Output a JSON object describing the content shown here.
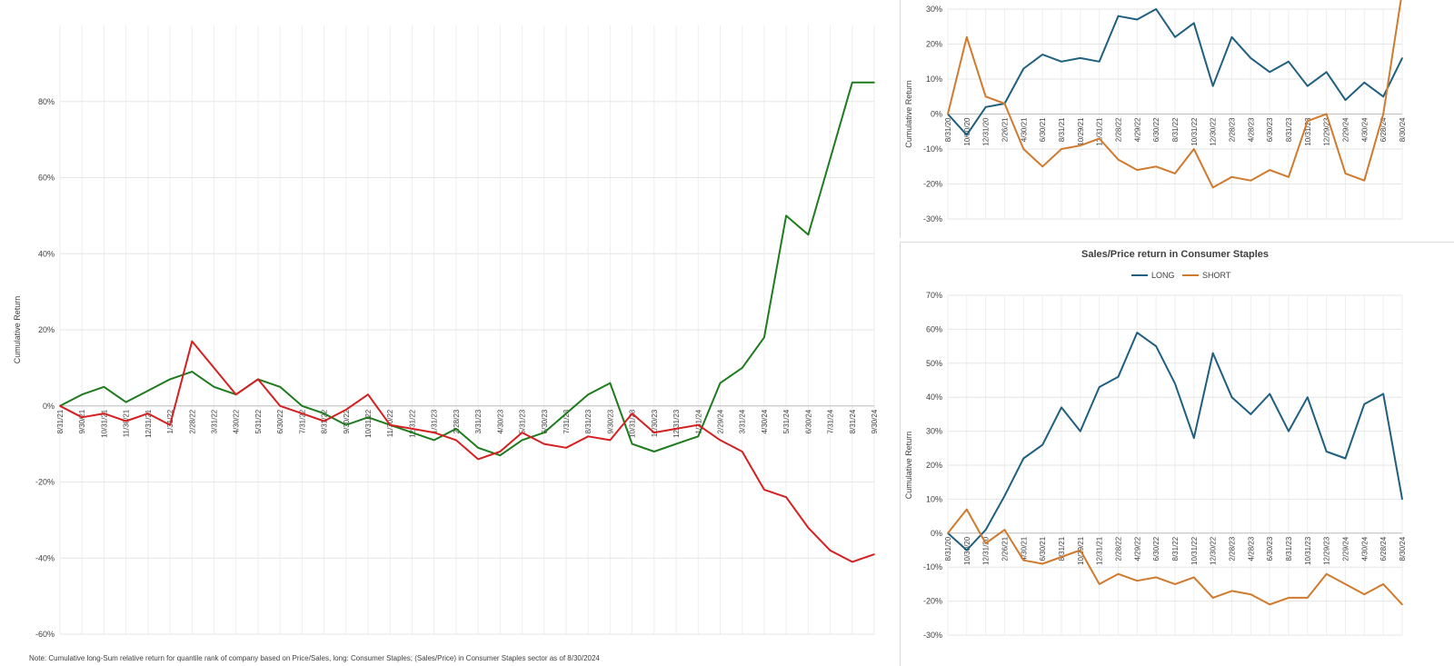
{
  "footnote": "Note: Cumulative long-Sum relative return for quantile rank of company based on Price/Sales, long: Consumer Staples; (Sales/Price) in Consumer Staples sector as of 8/30/2024",
  "chart_data": [
    {
      "type": "line",
      "ylabel": "Cumulative Return",
      "ylim": [
        -0.6,
        1.0
      ],
      "yticks": [
        -0.6,
        -0.4,
        -0.2,
        0,
        0.2,
        0.4,
        0.6,
        0.8
      ],
      "ytick_labels": [
        "-60%",
        "-40%",
        "-20%",
        "0%",
        "20%",
        "40%",
        "60%",
        "80%"
      ],
      "categories": [
        "8/31/21",
        "9/30/21",
        "10/31/21",
        "11/30/21",
        "12/31/21",
        "1/31/22",
        "2/28/22",
        "3/31/22",
        "4/30/22",
        "5/31/22",
        "6/30/22",
        "7/31/22",
        "8/31/22",
        "9/30/22",
        "10/31/22",
        "11/30/22",
        "12/31/22",
        "1/31/23",
        "2/28/23",
        "3/31/23",
        "4/30/23",
        "5/31/23",
        "6/30/23",
        "7/31/23",
        "8/31/23",
        "9/30/23",
        "10/31/23",
        "11/30/23",
        "12/31/23",
        "1/31/24",
        "2/29/24",
        "3/31/24",
        "4/30/24",
        "5/31/24",
        "6/30/24",
        "7/31/24",
        "8/31/24",
        "9/30/24"
      ],
      "series": [
        {
          "color": "#1e7b1e",
          "values": [
            0.0,
            0.03,
            0.05,
            0.01,
            0.04,
            0.07,
            0.09,
            0.05,
            0.03,
            0.07,
            0.05,
            0.0,
            -0.02,
            -0.05,
            -0.03,
            -0.05,
            -0.07,
            -0.09,
            -0.06,
            -0.11,
            -0.13,
            -0.09,
            -0.07,
            -0.02,
            0.03,
            0.06,
            -0.1,
            -0.12,
            -0.1,
            -0.08,
            0.06,
            0.1,
            0.18,
            0.5,
            0.45,
            0.65,
            0.85,
            0.85
          ]
        },
        {
          "color": "#d42020",
          "values": [
            0.0,
            -0.03,
            -0.02,
            -0.04,
            -0.02,
            -0.05,
            0.17,
            0.1,
            0.03,
            0.07,
            0.0,
            -0.02,
            -0.04,
            -0.01,
            0.03,
            -0.05,
            -0.06,
            -0.07,
            -0.09,
            -0.14,
            -0.12,
            -0.07,
            -0.1,
            -0.11,
            -0.08,
            -0.09,
            -0.02,
            -0.07,
            -0.06,
            -0.05,
            -0.09,
            -0.12,
            -0.22,
            -0.24,
            -0.32,
            -0.38,
            -0.41,
            -0.39
          ]
        }
      ]
    },
    {
      "type": "line",
      "ylabel": "Cumulative Return",
      "ylim": [
        -0.3,
        0.3
      ],
      "yticks": [
        -0.3,
        -0.2,
        -0.1,
        0,
        0.1,
        0.2,
        0.3
      ],
      "ytick_labels": [
        "-30%",
        "-20%",
        "-10%",
        "0%",
        "10%",
        "20%",
        "30%"
      ],
      "categories": [
        "8/31/20",
        "10/30/20",
        "12/31/20",
        "2/26/21",
        "4/30/21",
        "6/30/21",
        "8/31/21",
        "10/29/21",
        "12/31/21",
        "2/28/22",
        "4/29/22",
        "6/30/22",
        "8/31/22",
        "10/31/22",
        "12/30/22",
        "2/28/23",
        "4/28/23",
        "6/30/23",
        "8/31/23",
        "10/31/23",
        "12/29/23",
        "2/29/24",
        "4/30/24",
        "6/28/24",
        "8/30/24"
      ],
      "series": [
        {
          "name": "LONG",
          "color": "#1f5f7f",
          "values": [
            0.0,
            -0.06,
            0.02,
            0.03,
            0.13,
            0.17,
            0.15,
            0.16,
            0.15,
            0.28,
            0.27,
            0.3,
            0.22,
            0.26,
            0.08,
            0.22,
            0.16,
            0.12,
            0.15,
            0.08,
            0.12,
            0.04,
            0.09,
            0.05,
            0.16
          ]
        },
        {
          "name": "SHORT",
          "color": "#d07a2e",
          "values": [
            0.0,
            0.22,
            0.05,
            0.03,
            -0.1,
            -0.15,
            -0.1,
            -0.09,
            -0.07,
            -0.13,
            -0.16,
            -0.15,
            -0.17,
            -0.1,
            -0.21,
            -0.18,
            -0.19,
            -0.16,
            -0.18,
            -0.02,
            0.0,
            -0.17,
            -0.19,
            0.0,
            0.35
          ]
        }
      ]
    },
    {
      "type": "line",
      "title": "Sales/Price return in  Consumer Staples",
      "ylabel": "Cumulative Return",
      "legend": "top",
      "ylim": [
        -0.3,
        0.7
      ],
      "yticks": [
        -0.3,
        -0.2,
        -0.1,
        0,
        0.1,
        0.2,
        0.3,
        0.4,
        0.5,
        0.6,
        0.7
      ],
      "ytick_labels": [
        "-30%",
        "-20%",
        "-10%",
        "0%",
        "10%",
        "20%",
        "30%",
        "40%",
        "50%",
        "60%",
        "70%"
      ],
      "categories": [
        "8/31/20",
        "10/30/20",
        "12/31/20",
        "2/26/21",
        "4/30/21",
        "6/30/21",
        "8/31/21",
        "10/29/21",
        "12/31/21",
        "2/28/22",
        "4/29/22",
        "6/30/22",
        "8/31/22",
        "10/31/22",
        "12/30/22",
        "2/28/23",
        "4/28/23",
        "6/30/23",
        "8/31/23",
        "10/31/23",
        "12/29/23",
        "2/29/24",
        "4/30/24",
        "6/28/24",
        "8/30/24"
      ],
      "series": [
        {
          "name": "LONG",
          "color": "#1f5f7f",
          "values": [
            0.0,
            -0.05,
            0.01,
            0.11,
            0.22,
            0.26,
            0.37,
            0.3,
            0.43,
            0.46,
            0.59,
            0.55,
            0.44,
            0.28,
            0.53,
            0.4,
            0.35,
            0.41,
            0.3,
            0.4,
            0.24,
            0.22,
            0.38,
            0.41,
            0.1
          ]
        },
        {
          "name": "SHORT",
          "color": "#d07a2e",
          "values": [
            0.0,
            0.07,
            -0.03,
            0.01,
            -0.08,
            -0.09,
            -0.07,
            -0.05,
            -0.15,
            -0.12,
            -0.14,
            -0.13,
            -0.15,
            -0.13,
            -0.19,
            -0.17,
            -0.18,
            -0.21,
            -0.19,
            -0.19,
            -0.12,
            -0.15,
            -0.18,
            -0.15,
            -0.21
          ]
        }
      ]
    }
  ]
}
